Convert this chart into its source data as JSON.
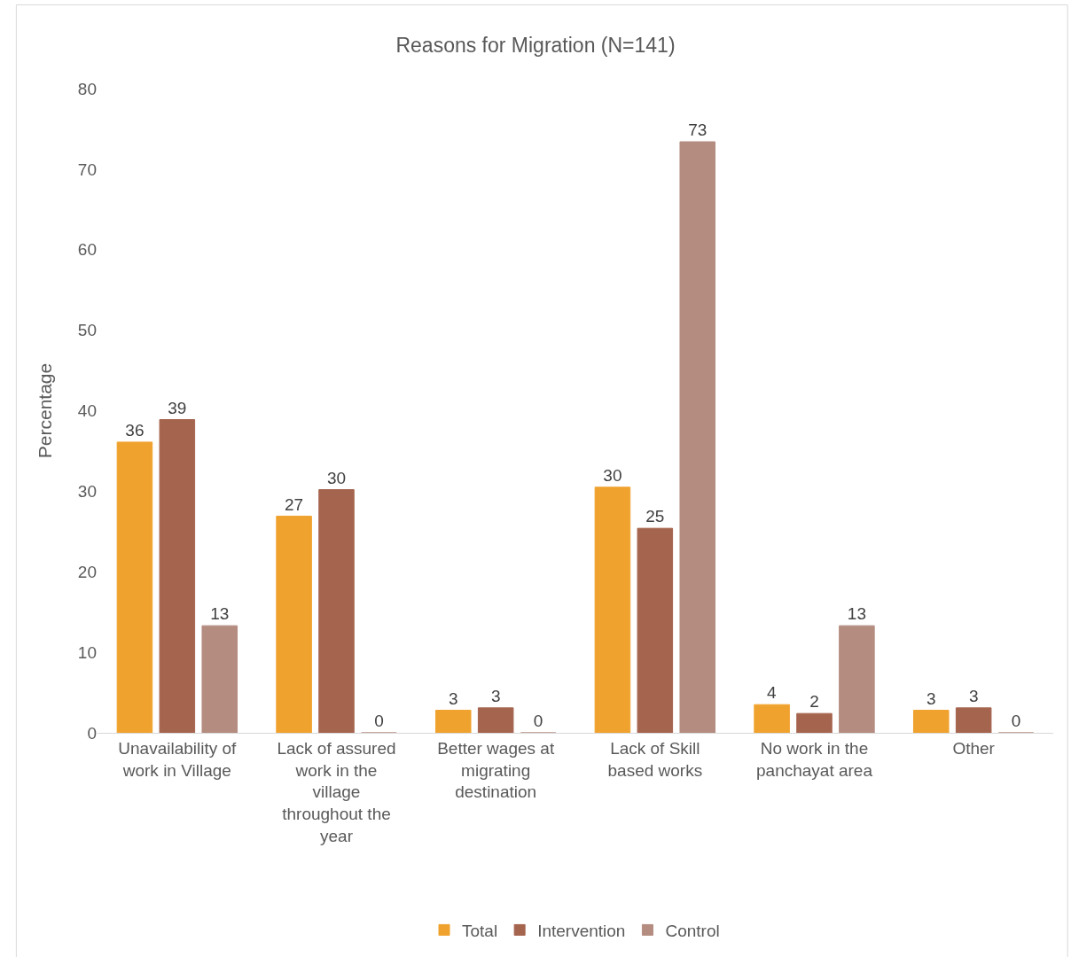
{
  "chart_data": {
    "type": "bar",
    "title": "Reasons for Migration (N=141)",
    "ylabel": "Percentage",
    "categories": [
      "Unavailability of work in Village",
      "Lack of assured work in the village throughout the year",
      "Better wages at migrating destination",
      "Lack of Skill based works",
      "No work in the panchayat area",
      "Other"
    ],
    "series": [
      {
        "name": "Total",
        "color": "#f0a22e",
        "values": [
          36.1,
          26.9,
          2.8,
          30.5,
          3.5,
          2.8
        ],
        "value_labels": [
          "36",
          "27",
          "3",
          "30",
          "4",
          "3"
        ]
      },
      {
        "name": "Intervention",
        "color": "#a5644e",
        "values": [
          38.9,
          30.2,
          3.1,
          25.4,
          2.4,
          3.1
        ],
        "value_labels": [
          "39",
          "30",
          "3",
          "25",
          "2",
          "3"
        ]
      },
      {
        "name": "Control",
        "color": "#b58c80",
        "values": [
          13.3,
          0,
          0,
          73.4,
          13.3,
          0
        ],
        "value_labels": [
          "13",
          "0",
          "0",
          "73",
          "13",
          "0"
        ]
      }
    ],
    "ylim": [
      0,
      80
    ],
    "yticks": [
      0,
      10,
      20,
      30,
      40,
      50,
      60,
      70,
      80
    ],
    "grid": false,
    "legend": "bottom"
  }
}
